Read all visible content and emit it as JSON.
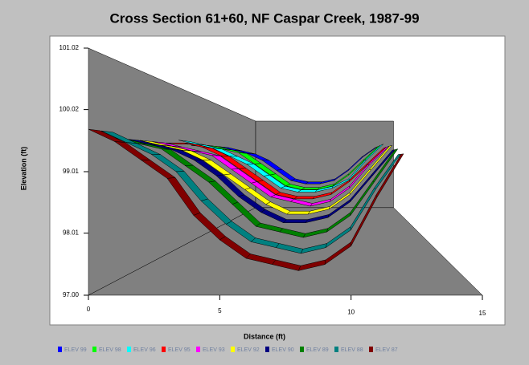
{
  "chart_data": {
    "type": "ribbon",
    "title": "Cross Section 61+60, NF Caspar Creek, 1987-99",
    "x_label": "Distance (ft)",
    "y_label": "Elevation (ft)",
    "x": [
      0,
      1,
      2,
      3,
      4,
      5,
      6,
      7,
      8,
      9,
      10,
      11,
      12
    ],
    "xlim": [
      0,
      15
    ],
    "xticks": [
      0,
      5,
      10,
      15
    ],
    "ylim": [
      97,
      101.02
    ],
    "yticks": [
      {
        "value": 97,
        "label": "97.00"
      },
      98.01,
      99.01,
      100.02,
      101.02
    ],
    "grid": false,
    "series": [
      {
        "name": "ELEV 99",
        "color": "#0000ff",
        "values": [
          99.6,
          99.6,
          99.5,
          99.4,
          99.2,
          98.9,
          98.6,
          98.5,
          98.5,
          98.6,
          98.9,
          99.3,
          99.6
        ]
      },
      {
        "name": "ELEV 98",
        "color": "#00ff00",
        "values": [
          99.6,
          99.6,
          99.5,
          99.4,
          99.1,
          98.8,
          98.5,
          98.4,
          98.4,
          98.5,
          98.8,
          99.2,
          99.6
        ]
      },
      {
        "name": "ELEV 96",
        "color": "#00ffff",
        "values": [
          99.7,
          99.6,
          99.5,
          99.3,
          99.1,
          98.8,
          98.5,
          98.4,
          98.4,
          98.5,
          98.7,
          99.2,
          99.6
        ]
      },
      {
        "name": "ELEV 95",
        "color": "#ff0000",
        "values": [
          99.6,
          99.6,
          99.5,
          99.3,
          99.0,
          98.7,
          98.4,
          98.3,
          98.3,
          98.4,
          98.7,
          99.1,
          99.5
        ]
      },
      {
        "name": "ELEV 93",
        "color": "#ff00ff",
        "values": [
          99.6,
          99.5,
          99.4,
          99.3,
          99.0,
          98.7,
          98.4,
          98.3,
          98.2,
          98.3,
          98.6,
          99.1,
          99.5
        ]
      },
      {
        "name": "ELEV 92",
        "color": "#ffff00",
        "values": [
          99.6,
          99.5,
          99.4,
          99.2,
          98.9,
          98.6,
          98.3,
          98.1,
          98.1,
          98.2,
          98.5,
          99.0,
          99.5
        ]
      },
      {
        "name": "ELEV 90",
        "color": "#000080",
        "values": [
          99.6,
          99.5,
          99.4,
          99.2,
          98.9,
          98.5,
          98.2,
          98.0,
          98.0,
          98.1,
          98.4,
          98.9,
          99.4
        ]
      },
      {
        "name": "ELEV 89",
        "color": "#008000",
        "values": [
          99.6,
          99.5,
          99.4,
          99.1,
          98.8,
          98.4,
          98.0,
          97.9,
          97.8,
          97.9,
          98.2,
          98.8,
          99.4
        ]
      },
      {
        "name": "ELEV 88",
        "color": "#008080",
        "values": [
          99.7,
          99.5,
          99.3,
          99.0,
          98.5,
          98.1,
          97.8,
          97.7,
          97.6,
          97.7,
          98.0,
          98.7,
          99.3
        ]
      },
      {
        "name": "ELEV 87",
        "color": "#800000",
        "values": [
          99.7,
          99.5,
          99.2,
          98.9,
          98.3,
          97.9,
          97.6,
          97.5,
          97.4,
          97.5,
          97.8,
          98.6,
          99.3
        ]
      }
    ]
  }
}
